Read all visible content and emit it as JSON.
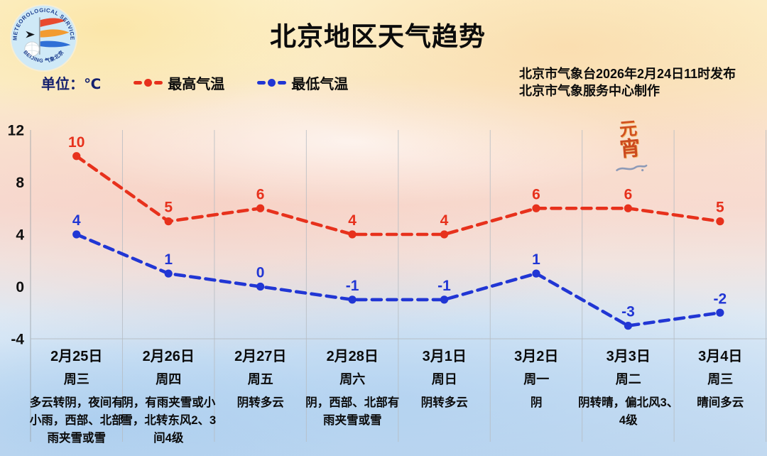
{
  "title": "北京地区天气趋势",
  "unit_label": "单位：℃",
  "issued": {
    "line1": "北京市气象台2026年2月24日11时发布",
    "line2": "北京市气象服务中心制作"
  },
  "legend": [
    {
      "label": "最高气温",
      "color": "#e7311c"
    },
    {
      "label": "最低气温",
      "color": "#2136d4"
    }
  ],
  "logo": {
    "arc_text_top": "METEOROLOGICAL SERVICE",
    "arc_text_bottom": "BEIJING 气象北京"
  },
  "decoration": {
    "char1": "元",
    "char2": "宵"
  },
  "chart_data": {
    "type": "line",
    "line_style": "dashed",
    "grid": "vertical-only",
    "legend_position": "top-left",
    "ylim": [
      -4,
      12
    ],
    "yticks": [
      12,
      8,
      4,
      0,
      -4
    ],
    "categories": [
      "2月25日",
      "2月26日",
      "2月27日",
      "2月28日",
      "3月1日",
      "3月2日",
      "3月3日",
      "3月4日"
    ],
    "weekdays": [
      "周三",
      "周四",
      "周五",
      "周六",
      "周日",
      "周一",
      "周二",
      "周三"
    ],
    "weather": [
      "多云转阴，夜间有小雨，西部、北部雨夹雪或雪",
      "阴，有雨夹雪或小雪，北转东风2、3间4级",
      "阴转多云",
      "阴，西部、北部有雨夹雪或雪",
      "阴转多云",
      "阴",
      "阴转晴，偏北风3、4级",
      "晴间多云"
    ],
    "series": [
      {
        "name": "最高气温",
        "color": "#e7311c",
        "values": [
          10,
          5,
          6,
          4,
          4,
          6,
          6,
          5
        ]
      },
      {
        "name": "最低气温",
        "color": "#2136d4",
        "values": [
          4,
          1,
          0,
          -1,
          -1,
          1,
          -3,
          -2
        ]
      }
    ]
  }
}
